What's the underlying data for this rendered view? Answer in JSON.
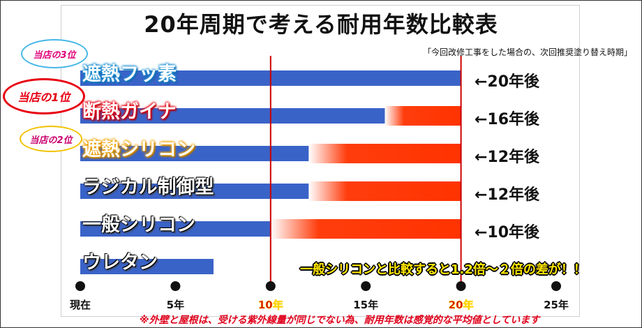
{
  "title": "20年周期で考える耐用年数比較表",
  "note": "「今回改修工事をした場合の、次回推奨塗り替え時期」",
  "compare_text": "一般シリコンと比較すると1.2倍～２倍の差が！！",
  "footnote": "※外壁と屋根は、受ける紫外線量が同じでない為、耐用年数は感覚的な平均値としています",
  "badges": {
    "rank3": "当店の3位",
    "rank1": "当店の1位",
    "rank2": "当店の2位"
  },
  "colors": {
    "bar": "#3a63c8",
    "fade": "#ff3300",
    "marker": "#cc0000",
    "highlight_tick": "#d40000"
  },
  "chart_data": {
    "type": "bar",
    "orientation": "horizontal",
    "x_ticks": [
      "現在",
      "5年",
      "10年",
      "15年",
      "20年",
      "25年"
    ],
    "x_tick_values": [
      0,
      5,
      10,
      15,
      20,
      25
    ],
    "xlim": [
      0,
      25
    ],
    "reference_lines": [
      10,
      20
    ],
    "categories": [
      "遮熱フッ素",
      "断熱ガイナ",
      "遮熱シリコン",
      "ラジカル制御型",
      "一般シリコン",
      "ウレタン"
    ],
    "values": [
      20,
      16,
      12,
      12,
      10,
      7
    ],
    "faded_to": [
      null,
      20,
      20,
      20,
      20,
      null
    ],
    "annotations": [
      "←20年後",
      "←16年後",
      "←12年後",
      "←12年後",
      "←10年後",
      null
    ]
  }
}
